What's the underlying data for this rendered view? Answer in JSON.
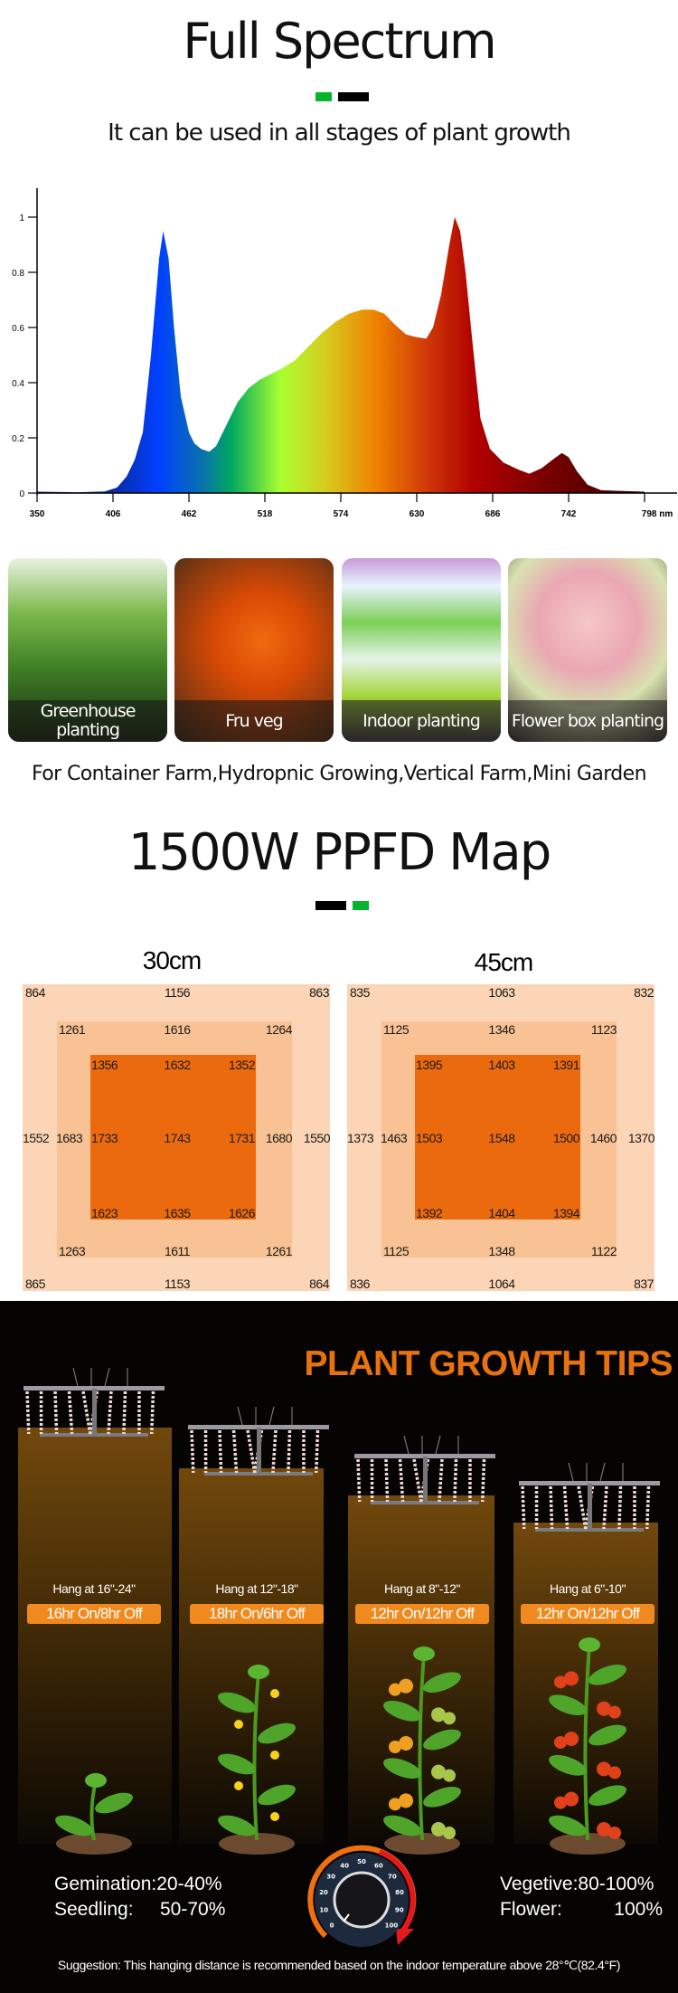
{
  "header": {
    "title": "Full Spectrum",
    "subtitle": "It can be used in all stages of plant growth",
    "accent_green": "#05b42c"
  },
  "chart_data": {
    "type": "area",
    "xlabel": "",
    "ylabel": "",
    "x_unit": "nm",
    "xlim": [
      350,
      798
    ],
    "ylim": [
      0,
      1.1
    ],
    "x_ticks": [
      "350",
      "406",
      "462",
      "518",
      "574",
      "630",
      "686",
      "742",
      "798 nm"
    ],
    "y_ticks": [
      "0",
      "0.2",
      "0.4",
      "0.6",
      "0.8",
      "1"
    ],
    "grid": false,
    "x": [
      350,
      380,
      400,
      409,
      416,
      422,
      428,
      434,
      440,
      443,
      447,
      451,
      456,
      462,
      466,
      471,
      477,
      482,
      490,
      498,
      506,
      514,
      522,
      530,
      540,
      550,
      560,
      570,
      580,
      590,
      598,
      606,
      614,
      622,
      630,
      637,
      642,
      648,
      654,
      658,
      662,
      666,
      671,
      677,
      684,
      694,
      705,
      713,
      722,
      730,
      737,
      742,
      748,
      756,
      766,
      780,
      798
    ],
    "y": [
      0.005,
      0.003,
      0.006,
      0.02,
      0.06,
      0.12,
      0.22,
      0.5,
      0.85,
      0.95,
      0.85,
      0.6,
      0.35,
      0.22,
      0.18,
      0.16,
      0.15,
      0.17,
      0.25,
      0.33,
      0.38,
      0.41,
      0.43,
      0.45,
      0.48,
      0.53,
      0.58,
      0.62,
      0.65,
      0.665,
      0.665,
      0.65,
      0.61,
      0.575,
      0.565,
      0.56,
      0.6,
      0.72,
      0.9,
      1.0,
      0.95,
      0.8,
      0.55,
      0.27,
      0.16,
      0.11,
      0.085,
      0.07,
      0.09,
      0.12,
      0.145,
      0.13,
      0.08,
      0.03,
      0.01,
      0.008,
      0.005
    ]
  },
  "uses": {
    "cards": [
      {
        "label": "Greenhouse planting"
      },
      {
        "label": "Fru veg"
      },
      {
        "label": "Indoor planting"
      },
      {
        "label": "Flower box planting"
      }
    ],
    "tagline": "For Container Farm,Hydropnic Growing,Vertical Farm,Mini Garden"
  },
  "ppfd": {
    "title": "1500W PPFD Map",
    "maps": [
      {
        "height": "30cm",
        "outer_top": [
          "864",
          "1156",
          "863"
        ],
        "outer_left": "1552",
        "outer_right": "1550",
        "outer_bottom": [
          "865",
          "1153",
          "864"
        ],
        "mid_top": [
          "1261",
          "1616",
          "1264"
        ],
        "mid_left": "1683",
        "mid_right": "1680",
        "mid_bottom": [
          "1263",
          "1611",
          "1261"
        ],
        "inner_top": [
          "1356",
          "1632",
          "1352"
        ],
        "inner_center": [
          "1733",
          "1743",
          "1731"
        ],
        "inner_bottom": [
          "1623",
          "1635",
          "1626"
        ]
      },
      {
        "height": "45cm",
        "outer_top": [
          "835",
          "1063",
          "832"
        ],
        "outer_left": "1373",
        "outer_right": "1370",
        "outer_bottom": [
          "836",
          "1064",
          "837"
        ],
        "mid_top": [
          "1125",
          "1346",
          "1123"
        ],
        "mid_left": "1463",
        "mid_right": "1460",
        "mid_bottom": [
          "1125",
          "1348",
          "1122"
        ],
        "inner_top": [
          "1395",
          "1403",
          "1391"
        ],
        "inner_center": [
          "1503",
          "1548",
          "1500"
        ],
        "inner_bottom": [
          "1392",
          "1404",
          "1394"
        ]
      }
    ]
  },
  "tips": {
    "title": "PLANT GROWTH TIPS",
    "stages": [
      {
        "hang": "Hang at 16\"-24\"",
        "schedule": "16hr On/8hr Off"
      },
      {
        "hang": "Hang at 12\"-18\"",
        "schedule": "18hr On/6hr Off"
      },
      {
        "hang": "Hang at 8\"-12\"",
        "schedule": "12hr On/12hr Off"
      },
      {
        "hang": "Hang at 6\"-10\"",
        "schedule": "12hr On/12hr Off"
      }
    ],
    "germination": "Gemination:20-40%",
    "seedling_label": "Seedling:",
    "seedling_value": "50-70%",
    "vegetive": "Vegetive:80-100%",
    "flower_label": "Flower:",
    "flower_value": "100%",
    "dial_ticks": [
      "0",
      "10",
      "20",
      "30",
      "40",
      "50",
      "60",
      "70",
      "80",
      "90",
      "100"
    ],
    "suggestion": "Suggestion: This hanging distance is recommended based on the indoor temperature above 28°℃(82.4°F)",
    "accent": "#e8730e"
  }
}
